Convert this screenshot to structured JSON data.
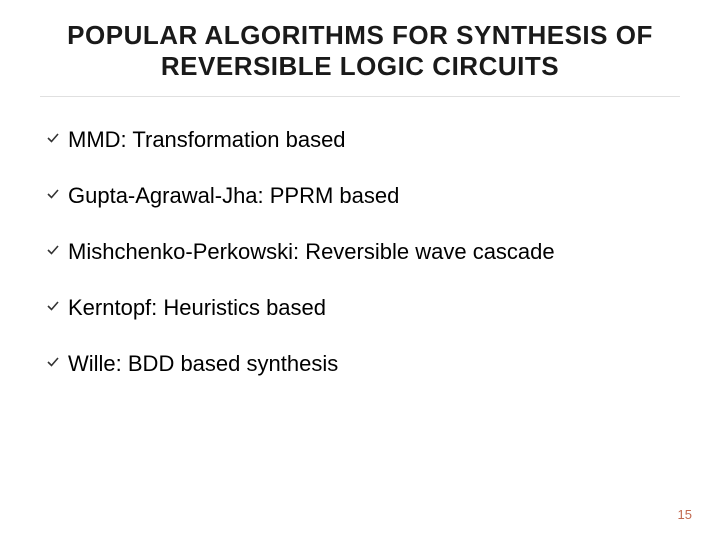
{
  "title": {
    "line1": "POPULAR ALGORITHMS FOR SYNTHESIS OF",
    "line2": "REVERSIBLE LOGIC CIRCUITS",
    "fontsize": 26,
    "color": "#1a1a1a",
    "underline_color": "#e0e0e0"
  },
  "bullets": {
    "items": [
      "MMD: Transformation based",
      "Gupta-Agrawal-Jha: PPRM based",
      "Mishchenko-Perkowski: Reversible wave cascade",
      "Kerntopf: Heuristics based",
      "Wille: BDD based synthesis"
    ],
    "text_color": "#000000",
    "fontsize": 22,
    "check_color": "#333333",
    "check_size": 14,
    "line_spacing": 30
  },
  "page_number": {
    "text": "15",
    "color": "#c1694f",
    "fontsize": 13
  },
  "background_color": "#ffffff"
}
